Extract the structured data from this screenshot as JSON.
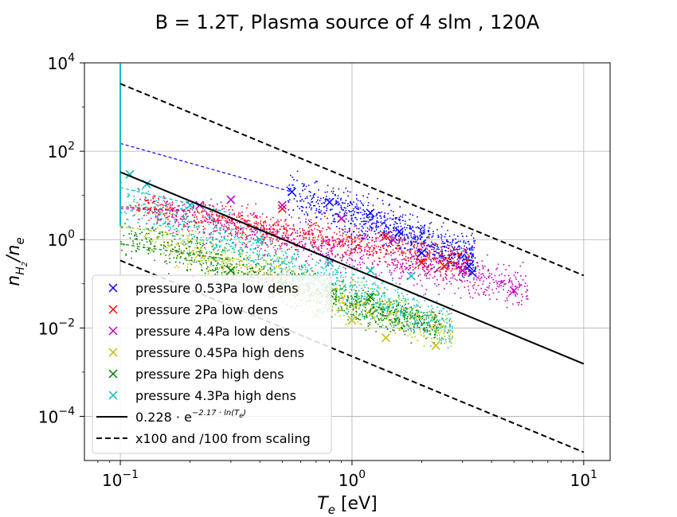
{
  "chart_data": {
    "type": "scatter",
    "title": "B = 1.2T, Plasma source of 4 slm , 120A",
    "xlabel": "T_e [eV]",
    "ylabel": "n_H2/n_e",
    "x_scale": "log",
    "y_scale": "log",
    "xlim": [
      0.07,
      13
    ],
    "ylim": [
      1e-05,
      10000
    ],
    "grid": true,
    "x_ticks": [
      {
        "value": 0.1,
        "base": "10",
        "exp": "−1"
      },
      {
        "value": 1,
        "base": "10",
        "exp": "0"
      },
      {
        "value": 10,
        "base": "10",
        "exp": "1"
      }
    ],
    "y_ticks": [
      {
        "value": 0.0001,
        "base": "10",
        "exp": "−4"
      },
      {
        "value": 0.01,
        "base": "10",
        "exp": "−2"
      },
      {
        "value": 1,
        "base": "10",
        "exp": "0"
      },
      {
        "value": 100,
        "base": "10",
        "exp": "2"
      },
      {
        "value": 10000,
        "base": "10",
        "exp": "4"
      }
    ],
    "legend_position": "bottom-left",
    "series": [
      {
        "name": "pressure 0.53Pa low dens",
        "color": "#0000ff",
        "marker": "x",
        "band": {
          "x": [
            0.52,
            3.4
          ],
          "y_center": [
            12,
            0.4
          ],
          "y_spread": [
            3.2,
            3.2
          ]
        },
        "points": [
          [
            0.55,
            12
          ],
          [
            0.8,
            7
          ],
          [
            1.2,
            4
          ],
          [
            1.6,
            1.5
          ],
          [
            2.0,
            0.5
          ],
          [
            3.2,
            0.25
          ],
          [
            3.3,
            0.18
          ]
        ],
        "fit": {
          "x": [
            0.1,
            0.55
          ],
          "y": [
            150,
            12
          ]
        }
      },
      {
        "name": "pressure 2Pa low dens",
        "color": "#ff0000",
        "marker": "x",
        "band": {
          "x": [
            0.11,
            3.2
          ],
          "y_center": [
            6,
            0.3
          ],
          "y_spread": [
            2.5,
            2.5
          ]
        },
        "points": [
          [
            0.5,
            5
          ],
          [
            0.9,
            3
          ],
          [
            1.4,
            1.2
          ],
          [
            2.0,
            0.3
          ],
          [
            2.5,
            0.25
          ]
        ],
        "fit": {
          "x": [
            0.1,
            0.2
          ],
          "y": [
            5.5,
            4.6
          ]
        }
      },
      {
        "name": "pressure 4.4Pa low dens",
        "color": "#bf00bf",
        "marker": "x",
        "band": {
          "x": [
            0.13,
            5.8
          ],
          "y_center": [
            5,
            0.08
          ],
          "y_spread": [
            3.2,
            3.5
          ]
        },
        "points": [
          [
            0.22,
            6
          ],
          [
            0.3,
            8
          ],
          [
            0.5,
            6
          ],
          [
            0.9,
            3
          ],
          [
            1.5,
            1
          ],
          [
            3,
            0.2
          ],
          [
            5,
            0.07
          ]
        ],
        "fit": {
          "x": [
            0.1,
            0.2
          ],
          "y": [
            5,
            4.5
          ]
        }
      },
      {
        "name": "pressure 0.45Pa high dens",
        "color": "#bfbf00",
        "marker": "x",
        "band": {
          "x": [
            0.12,
            2.7
          ],
          "y_center": [
            1.5,
            0.008
          ],
          "y_spread": [
            3,
            3
          ]
        },
        "points": [
          [
            0.7,
            0.02
          ],
          [
            1.0,
            0.015
          ],
          [
            1.4,
            0.006
          ],
          [
            2.3,
            0.004
          ]
        ],
        "fit": {
          "x": [
            0.1,
            0.2
          ],
          "y": [
            2,
            1.2
          ]
        }
      },
      {
        "name": "pressure 2Pa high dens",
        "color": "#008000",
        "marker": "x",
        "band": {
          "x": [
            0.1,
            2.4
          ],
          "y_center": [
            1.2,
            0.01
          ],
          "y_spread": [
            3,
            3
          ]
        },
        "points": [
          [
            0.3,
            0.2
          ],
          [
            0.5,
            0.1
          ],
          [
            0.8,
            0.06
          ],
          [
            1.2,
            0.05
          ]
        ],
        "fit": {
          "x": [
            0.1,
            0.3
          ],
          "y": [
            0.8,
            0.35
          ]
        }
      },
      {
        "name": "pressure 4.3Pa high dens",
        "color": "#00bfbf",
        "marker": "x",
        "band": {
          "x": [
            0.1,
            2.7
          ],
          "y_center": [
            8,
            0.01
          ],
          "y_spread": [
            3.2,
            3.5
          ]
        },
        "points": [
          [
            0.11,
            30
          ],
          [
            0.13,
            18
          ],
          [
            0.2,
            6
          ],
          [
            0.4,
            1
          ],
          [
            0.8,
            0.3
          ],
          [
            1.2,
            0.2
          ],
          [
            1.8,
            0.15
          ]
        ],
        "fit": {
          "x": [
            0.1,
            0.3
          ],
          "y": [
            15,
            4
          ]
        },
        "spike": {
          "x": 0.1,
          "y": [
            2,
            10000
          ]
        }
      }
    ],
    "fit_lines": [
      {
        "name": "0.228 · e^(−2.17 · ln(T_e))",
        "style": "solid",
        "color": "#000000",
        "coefficient": 0.228,
        "exponent": -2.17,
        "x": [
          0.1,
          10
        ]
      },
      {
        "name": "x100 and /100 from scaling",
        "style": "dashed",
        "color": "#000000",
        "coefficient": 22.8,
        "exponent": -2.17,
        "x": [
          0.1,
          10
        ]
      },
      {
        "name": "",
        "style": "dashed",
        "color": "#000000",
        "coefficient": 0.00228,
        "exponent": -2.17,
        "x": [
          0.1,
          10
        ]
      }
    ],
    "legend": [
      {
        "label": "pressure 0.53Pa low dens",
        "marker": "x",
        "color": "#0000ff"
      },
      {
        "label": "pressure 2Pa low dens",
        "marker": "x",
        "color": "#ff0000"
      },
      {
        "label": "pressure 4.4Pa low dens",
        "marker": "x",
        "color": "#bf00bf"
      },
      {
        "label": "pressure 0.45Pa high dens",
        "marker": "x",
        "color": "#bfbf00"
      },
      {
        "label": "pressure 2Pa high dens",
        "marker": "x",
        "color": "#008000"
      },
      {
        "label": "pressure 4.3Pa high dens",
        "marker": "x",
        "color": "#00bfbf"
      },
      {
        "label": "fit",
        "marker": "solid-line",
        "color": "#000000",
        "parts": {
          "base": "0.228 · e",
          "exp": "−2.17 · ln(T",
          "sub": "e",
          "close": ")"
        }
      },
      {
        "label": "x100 and /100 from scaling",
        "marker": "dashed-line",
        "color": "#000000"
      }
    ]
  }
}
